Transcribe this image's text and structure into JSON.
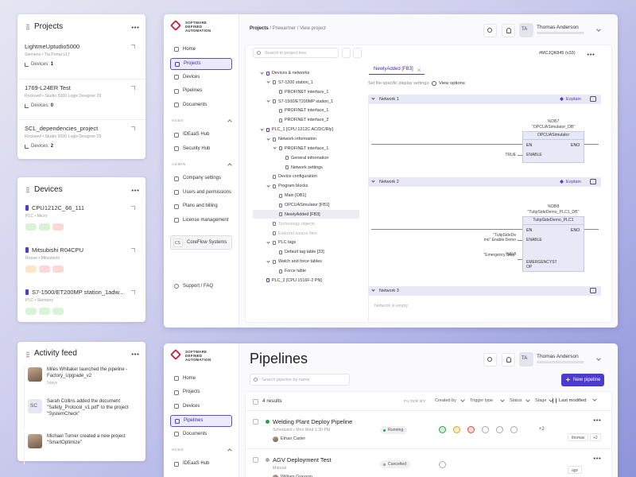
{
  "projects_card": {
    "title": "Projects",
    "items": [
      {
        "name": "LightmeUptudio5000",
        "meta": "Siemens • Tia Portal v17",
        "devices_label": "Devices:",
        "devices_count": "1"
      },
      {
        "name": "1769-L24ER Test",
        "meta": "Rockwell • Studio 5000 Logix Designer 29",
        "devices_label": "Devices:",
        "devices_count": "0"
      },
      {
        "name": "SCL_dependencies_project",
        "meta": "Rockwell • Studio 5000 Logix Designer 29",
        "devices_label": "Devices:",
        "devices_count": "2"
      }
    ]
  },
  "devices_card": {
    "title": "Devices",
    "items": [
      {
        "name": "CPU1212C_66_111",
        "meta": "PLC • Micro"
      },
      {
        "name": "Mitsubishi R04CPU",
        "meta": "Roose • Mitsubishi"
      },
      {
        "name": "S7-1500/ET200MP station_1adw...",
        "meta": "PLC • Siemens"
      }
    ]
  },
  "activity_card": {
    "title": "Activity feed",
    "items": [
      {
        "text": "Miles Whitaker launched the pipeline - Factory_Upgrade_v2",
        "time": "5days"
      },
      {
        "initials": "SC",
        "text": "Sarah Collins added the document \"Safety_Protocol_v1.pdf\" to the project \"SystemCheck\""
      },
      {
        "text": "Michael Turner created a new project \"SmartOptimize\""
      }
    ]
  },
  "project_window": {
    "sidebar": {
      "logo": "SOFTWARE DEFINED AUTOMATION",
      "nav": [
        {
          "label": "Home"
        },
        {
          "label": "Projects",
          "active": true
        },
        {
          "label": "Devices"
        },
        {
          "label": "Pipelines"
        },
        {
          "label": "Documents"
        }
      ],
      "sections": [
        {
          "title": "HUBS",
          "items": [
            {
              "label": "IDEaaS Hub"
            },
            {
              "label": "Security Hub"
            }
          ]
        },
        {
          "title": "ADMIN",
          "items": [
            {
              "label": "Company settings"
            },
            {
              "label": "Users and permissions"
            },
            {
              "label": "Plans and billing"
            },
            {
              "label": "License management"
            }
          ]
        }
      ],
      "org": {
        "initials": "CS",
        "name": "CoreFlow Systems"
      },
      "footer": "Support / FAQ"
    },
    "breadcrumb": {
      "items": [
        "Projects",
        "Prewarmer",
        "View project"
      ],
      "separator": "/"
    },
    "user": {
      "initials": "TA",
      "name": "Thomas Anderson"
    },
    "tree_search": "Search in project tree",
    "version": "#MCJQK845 (v33)",
    "tree": [
      {
        "label": "Devices & networks",
        "children": [
          {
            "label": "S7-1200 station_1",
            "children": [
              {
                "label": "PROFINET interface_1"
              }
            ]
          },
          {
            "label": "S7-1500/ET200MP station_1",
            "children": [
              {
                "label": "PROFINET interface_1"
              },
              {
                "label": "PROFINET interface_2"
              }
            ]
          }
        ]
      },
      {
        "label": "PLC_1 [CPU 1212C AC/DC/Rly]",
        "children": [
          {
            "label": "Network information",
            "children": [
              {
                "label": "PROFINET interface_1",
                "children": [
                  {
                    "label": "General information"
                  },
                  {
                    "label": "Network settings"
                  }
                ]
              }
            ]
          },
          {
            "label": "Device configuration"
          },
          {
            "label": "Program blocks",
            "children": [
              {
                "label": "Main [OB1]"
              },
              {
                "label": "OPCUASimulator [FB1]"
              },
              {
                "label": "NewlyAdded [FB3]",
                "selected": true
              }
            ]
          },
          {
            "label": "Technology objects",
            "disabled": true
          },
          {
            "label": "External source files",
            "disabled": true
          },
          {
            "label": "PLC tags",
            "children": [
              {
                "label": "Default tag table [33]"
              }
            ]
          },
          {
            "label": "Watch and force tables",
            "children": [
              {
                "label": "Force table"
              }
            ]
          }
        ]
      },
      {
        "label": "PLC_2 [CPU 1516F-2 PN]"
      }
    ],
    "editor": {
      "tab": "NewlyAdded [FB3]",
      "settings_label": "Set file-specific display settings:",
      "view_options": "View options",
      "networks": [
        {
          "title": "Network 1",
          "action": "Explain",
          "block": {
            "address": "%DB7",
            "instance": "\"OPCUASimulator_DB\"",
            "name": "OPCUASimulator",
            "en": "EN",
            "eno": "ENO",
            "inputs": [
              {
                "value": "TRUE",
                "pin": "ENABLE"
              }
            ]
          }
        },
        {
          "title": "Network 2",
          "action": "Explain",
          "block": {
            "address": "%DB8",
            "instance": "\"TulipSideDemo_PLC1_DB\"",
            "name": "TulipSideDemo_PLC1",
            "en": "EN",
            "eno": "ENO",
            "inputs": [
              {
                "value": "\"TulipSideDe mo\".Enable Demo",
                "pin": "ENABLE"
              },
              {
                "address": "%I0.0",
                "value": "\"Emergency Stop\"",
                "pin": "EMERGENCYST OP"
              }
            ]
          }
        },
        {
          "title": "Network 3",
          "empty": "Network is empty"
        }
      ]
    }
  },
  "pipelines_window": {
    "sidebar": {
      "logo": "SOFTWARE DEFINED AUTOMATION",
      "nav": [
        {
          "label": "Home"
        },
        {
          "label": "Projects"
        },
        {
          "label": "Devices"
        },
        {
          "label": "Pipelines",
          "active": true
        },
        {
          "label": "Documents"
        }
      ],
      "sections": [
        {
          "title": "HUBS",
          "items": [
            {
              "label": "IDEaaS Hub"
            }
          ]
        }
      ]
    },
    "title": "Pipelines",
    "search": "Search pipeline by name",
    "new_button": "New pipeline",
    "user": {
      "initials": "TA",
      "name": "Thomas Anderson"
    },
    "results": "4 results",
    "filter_label": "FILTER BY:",
    "filters": [
      "Created by",
      "Trigger type",
      "Status",
      "Stage"
    ],
    "sort": "Last modified",
    "rows": [
      {
        "name": "Welding Plant Deploy Pipeline",
        "trigger": "Scheduled",
        "schedule": "Mon Wed 1:30 PM",
        "owner": "Ethan Carter",
        "status": "Running",
        "stage_more": "+2",
        "tag": "thomas",
        "tag_more": "+2"
      },
      {
        "name": "AGV Deployment Test",
        "trigger": "Manual",
        "owner": "William Grayson",
        "status": "Cancelled",
        "tag": "agv"
      }
    ]
  }
}
